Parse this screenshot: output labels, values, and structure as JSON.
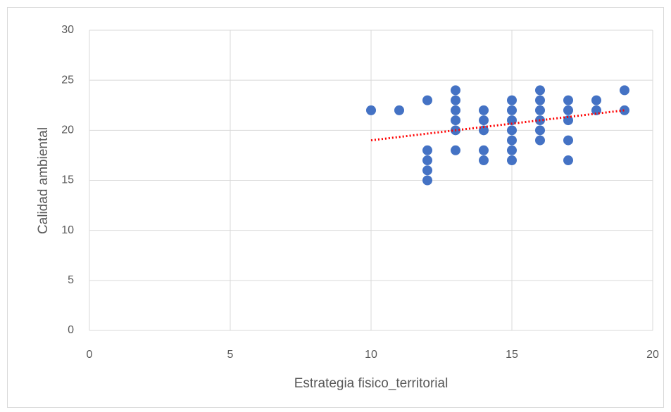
{
  "chart_data": {
    "type": "scatter",
    "x_label": "Estrategia fisico_territorial",
    "y_label": "Calidad ambiental",
    "x": [
      10,
      11,
      12,
      12,
      12,
      12,
      12,
      13,
      13,
      13,
      13,
      13,
      13,
      14,
      14,
      14,
      14,
      14,
      15,
      15,
      15,
      15,
      15,
      15,
      15,
      16,
      16,
      16,
      16,
      16,
      16,
      17,
      17,
      17,
      17,
      17,
      18,
      18,
      19,
      19
    ],
    "values": [
      22,
      22,
      23,
      18,
      17,
      16,
      15,
      24,
      23,
      22,
      21,
      20,
      18,
      22,
      21,
      20,
      18,
      17,
      23,
      22,
      21,
      20,
      19,
      18,
      17,
      24,
      23,
      22,
      21,
      20,
      19,
      23,
      22,
      21,
      19,
      17,
      23,
      22,
      24,
      22
    ],
    "color": "#4472c4",
    "trendline": {
      "x": [
        10,
        19
      ],
      "values": [
        19,
        22
      ],
      "color": "#ff0000"
    },
    "xlim": [
      0,
      20
    ],
    "xticks": [
      0,
      5,
      10,
      15,
      20
    ],
    "ylim": [
      0,
      30
    ],
    "yticks": [
      0,
      5,
      10,
      15,
      20,
      25,
      30
    ],
    "grid": true
  }
}
